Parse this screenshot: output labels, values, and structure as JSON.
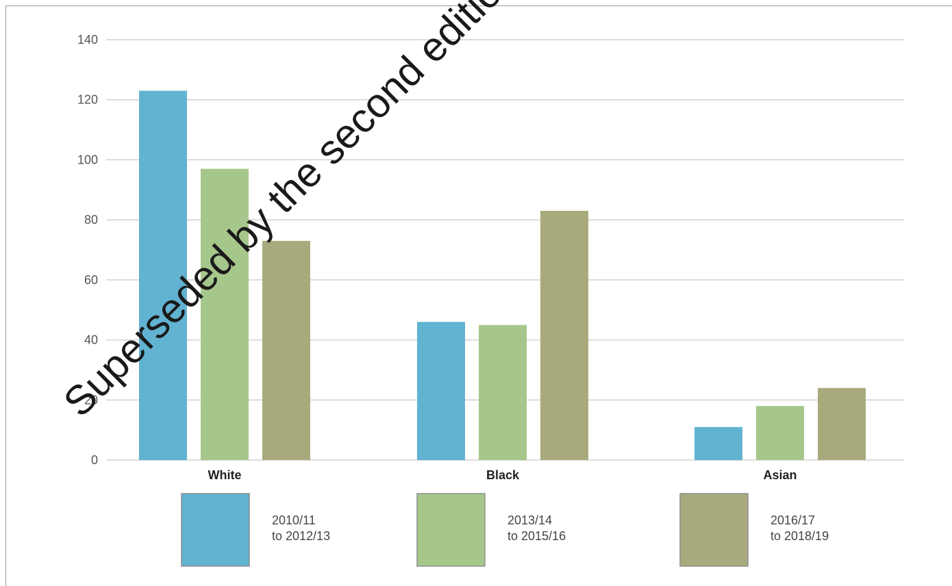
{
  "chart_data": {
    "type": "bar",
    "categories": [
      "White",
      "Black",
      "Asian"
    ],
    "series": [
      {
        "name": "2010/11\nto 2012/13",
        "values": [
          123,
          46,
          11
        ],
        "color": "#62b2d1"
      },
      {
        "name": "2013/14\nto 2015/16",
        "values": [
          97,
          45,
          18
        ],
        "color": "#a6c78c"
      },
      {
        "name": "2016/17\nto 2018/19",
        "values": [
          73,
          83,
          24
        ],
        "color": "#a9aa7c"
      }
    ],
    "yticks": [
      "0",
      "20",
      "40",
      "60",
      "80",
      "100",
      "120",
      "140"
    ],
    "ylim": [
      0,
      140
    ],
    "grid": true,
    "legend_position": "bottom"
  },
  "watermark": "Superseded by the second edition"
}
